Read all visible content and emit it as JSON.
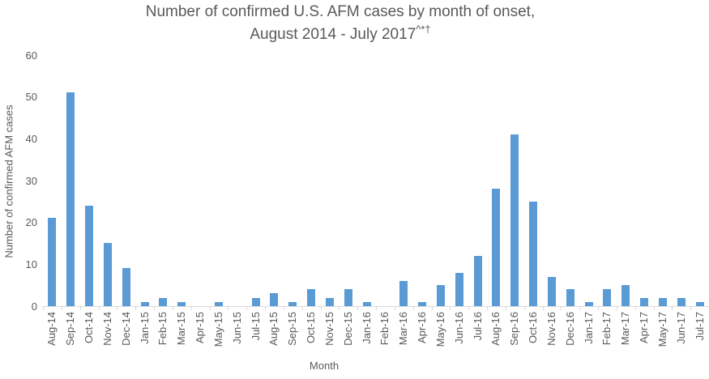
{
  "title": {
    "line1": "Number of confirmed U.S. AFM cases by month of onset,",
    "line2": "August 2014 - July 2017",
    "superscript": "^*†"
  },
  "chart_data": {
    "type": "bar",
    "title": "Number of confirmed U.S. AFM cases by month of onset, August 2014 - July 2017^*†",
    "xlabel": "Month",
    "ylabel": "Number of confirmed AFM cases",
    "categories": [
      "Aug-14",
      "Sep-14",
      "Oct-14",
      "Nov-14",
      "Dec-14",
      "Jan-15",
      "Feb-15",
      "Mar-15",
      "Apr-15",
      "May-15",
      "Jun-15",
      "Jul-15",
      "Aug-15",
      "Sep-15",
      "Oct-15",
      "Nov-15",
      "Dec-15",
      "Jan-16",
      "Feb-16",
      "Mar-16",
      "Apr-16",
      "May-16",
      "Jun-16",
      "Jul-16",
      "Aug-16",
      "Sep-16",
      "Oct-16",
      "Nov-16",
      "Dec-16",
      "Jan-17",
      "Feb-17",
      "Mar-17",
      "Apr-17",
      "May-17",
      "Jun-17",
      "Jul-17"
    ],
    "values": [
      21,
      51,
      24,
      15,
      9,
      1,
      2,
      1,
      0,
      1,
      0,
      2,
      3,
      1,
      4,
      2,
      4,
      1,
      0,
      6,
      1,
      5,
      8,
      12,
      28,
      41,
      25,
      7,
      4,
      1,
      4,
      5,
      2,
      2,
      2,
      1
    ],
    "ylim": [
      0,
      60
    ],
    "yticks": [
      0,
      10,
      20,
      30,
      40,
      50,
      60
    ],
    "grid": false,
    "legend": false,
    "bar_color": "#5b9bd5",
    "axis_color": "#d9d9d9",
    "text_color": "#595959"
  }
}
